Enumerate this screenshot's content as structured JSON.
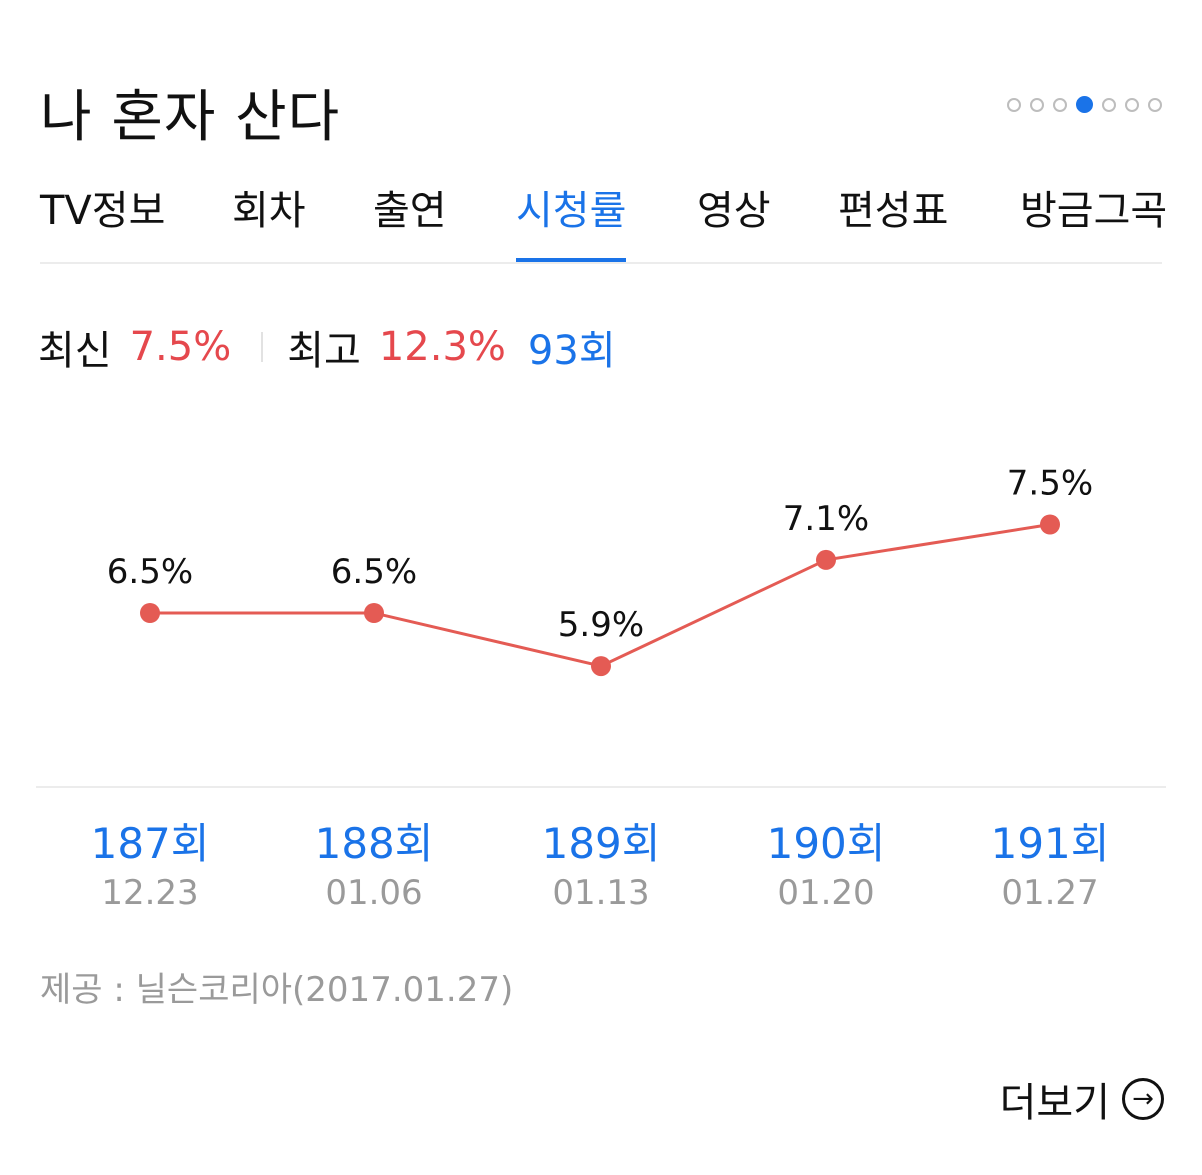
{
  "header": {
    "title": "나 혼자 산다",
    "pager": {
      "count": 7,
      "active_index": 3
    }
  },
  "tabs": [
    {
      "label": "TV정보"
    },
    {
      "label": "회차"
    },
    {
      "label": "출연"
    },
    {
      "label": "시청률",
      "active": true
    },
    {
      "label": "영상"
    },
    {
      "label": "편성표"
    },
    {
      "label": "방금그곡"
    }
  ],
  "summary": {
    "latest_label": "최신",
    "latest_value": "7.5%",
    "best_label": "최고",
    "best_value": "12.3%",
    "best_episode": "93회"
  },
  "chart_data": {
    "type": "line",
    "categories": [
      "187회",
      "188회",
      "189회",
      "190회",
      "191회"
    ],
    "dates": [
      "12.23",
      "01.06",
      "01.13",
      "01.20",
      "01.27"
    ],
    "values": [
      6.5,
      6.5,
      5.9,
      7.1,
      7.5
    ],
    "data_labels": [
      "6.5%",
      "6.5%",
      "5.9%",
      "7.1%",
      "7.5%"
    ],
    "line_color": "#e45b54",
    "grid": false
  },
  "footer": {
    "source": "제공 : 닐슨코리아(2017.01.27)",
    "more_label": "더보기",
    "more_icon": "arrow-right-circle-icon"
  },
  "colors": {
    "accent": "#1a73e8",
    "rating": "#e5484d",
    "muted": "#9a9a9a"
  }
}
